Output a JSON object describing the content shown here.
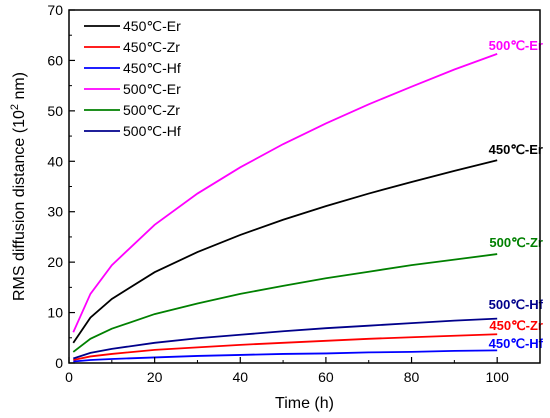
{
  "chart_data": {
    "type": "line",
    "xlabel": "Time (h)",
    "ylabel_main": "RMS diffusion distance (10",
    "ylabel_sup": "2",
    "ylabel_tail": " nm)",
    "xlim": [
      0,
      110
    ],
    "ylim": [
      0,
      70
    ],
    "xticks": [
      0,
      20,
      40,
      60,
      80,
      100
    ],
    "yticks": [
      0,
      10,
      20,
      30,
      40,
      50,
      60,
      70
    ],
    "grid": false,
    "legend_position": "top-left",
    "x": [
      1,
      5,
      10,
      20,
      30,
      40,
      50,
      60,
      70,
      80,
      90,
      100
    ],
    "series": [
      {
        "name": "450℃-Er",
        "color": "#000000",
        "annotation": "450℃-Er",
        "values": [
          4.0,
          9.0,
          12.7,
          18.0,
          22.0,
          25.4,
          28.4,
          31.1,
          33.6,
          35.9,
          38.1,
          40.2
        ]
      },
      {
        "name": "450℃-Zr",
        "color": "#ff0000",
        "annotation": "450℃-Zr",
        "values": [
          0.6,
          1.3,
          1.8,
          2.6,
          3.1,
          3.6,
          4.0,
          4.4,
          4.8,
          5.1,
          5.4,
          5.7
        ]
      },
      {
        "name": "450℃-Hf",
        "color": "#0000ff",
        "annotation": "450℃-Hf",
        "values": [
          0.3,
          0.6,
          0.8,
          1.1,
          1.4,
          1.6,
          1.8,
          1.9,
          2.1,
          2.2,
          2.4,
          2.5
        ]
      },
      {
        "name": "500℃-Er",
        "color": "#ff00ff",
        "annotation": "500℃-Er",
        "values": [
          6.1,
          13.7,
          19.4,
          27.4,
          33.6,
          38.8,
          43.4,
          47.5,
          51.3,
          54.8,
          58.2,
          61.3
        ]
      },
      {
        "name": "500℃-Zr",
        "color": "#008000",
        "annotation": "500℃-Zr",
        "values": [
          2.2,
          4.8,
          6.8,
          9.7,
          11.8,
          13.7,
          15.3,
          16.8,
          18.1,
          19.4,
          20.5,
          21.6
        ]
      },
      {
        "name": "500℃-Hf",
        "color": "#00008b",
        "annotation": "500℃-Hf",
        "values": [
          0.9,
          2.0,
          2.8,
          4.0,
          4.9,
          5.6,
          6.3,
          6.9,
          7.4,
          7.9,
          8.4,
          8.8
        ]
      }
    ]
  }
}
